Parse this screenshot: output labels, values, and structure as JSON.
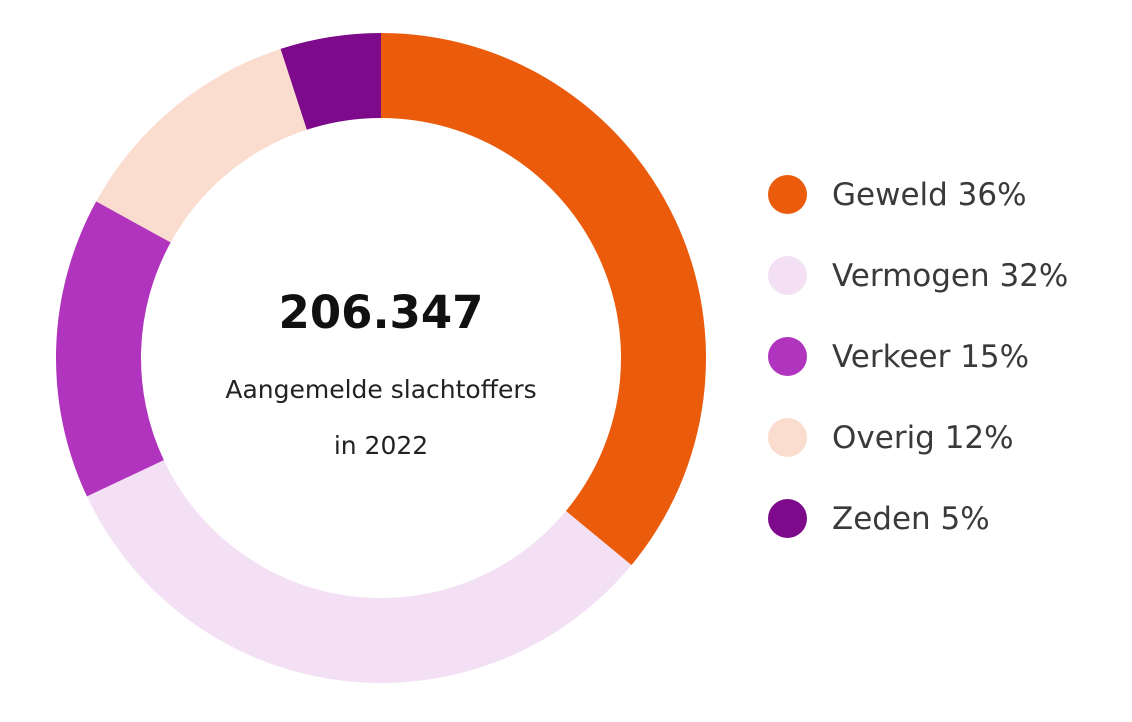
{
  "chart_data": {
    "type": "pie",
    "variant": "donut",
    "center_value": "206.347",
    "center_label_line1": "Aangemelde slachtoffers",
    "center_label_line2": "in 2022",
    "legend_position": "right",
    "categories": [
      "Geweld",
      "Vermogen",
      "Verkeer",
      "Overig",
      "Zeden"
    ],
    "values": [
      36,
      32,
      15,
      12,
      5
    ],
    "unit": "%",
    "legend_labels": [
      "Geweld 36%",
      "Vermogen 32%",
      "Verkeer 15%",
      "Overig 12%",
      "Zeden 5%"
    ],
    "colors": [
      "#EA5B0C",
      "#F3E0F5",
      "#B034BD",
      "#FBDDD0",
      "#7D0A8A"
    ]
  }
}
